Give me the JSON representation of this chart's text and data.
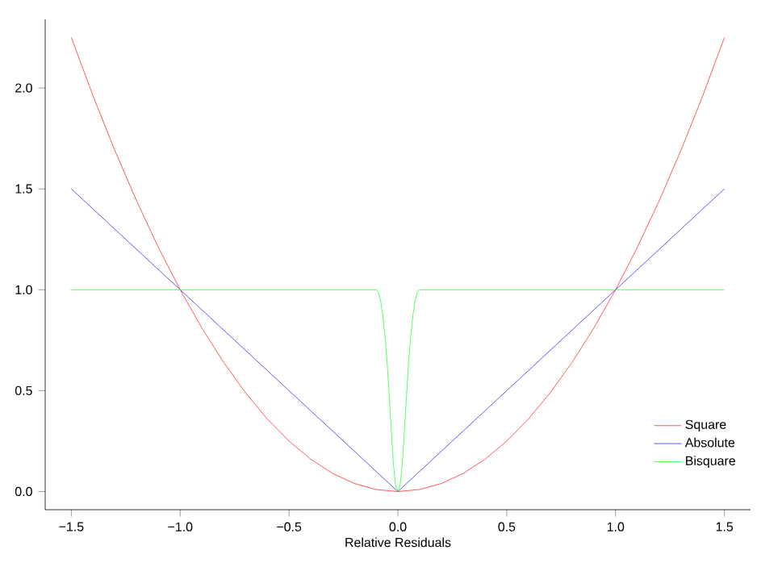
{
  "chart_data": {
    "type": "line",
    "xlabel": "Relative Residuals",
    "xlim": [
      -1.62,
      1.62
    ],
    "ylim": [
      -0.09,
      2.34
    ],
    "xticks": [
      {
        "value": -1.5,
        "label": "−1.5"
      },
      {
        "value": -1.0,
        "label": "−1.0"
      },
      {
        "value": -0.5,
        "label": "−0.5"
      },
      {
        "value": 0.0,
        "label": "0.0"
      },
      {
        "value": 0.5,
        "label": "0.5"
      },
      {
        "value": 1.0,
        "label": "1.0"
      },
      {
        "value": 1.5,
        "label": "1.5"
      }
    ],
    "yticks": [
      {
        "value": 0.0,
        "label": "0.0"
      },
      {
        "value": 0.5,
        "label": "0.5"
      },
      {
        "value": 1.0,
        "label": "1.0"
      },
      {
        "value": 1.5,
        "label": "1.5"
      },
      {
        "value": 2.0,
        "label": "2.0"
      }
    ],
    "legend": "bottom right",
    "grid": false,
    "marker": "none",
    "line_style": "solid",
    "series": [
      {
        "name": "Square",
        "color": "#ff3030",
        "x": [
          -1.5,
          -1.4,
          -1.3,
          -1.2,
          -1.1,
          -1.0,
          -0.9,
          -0.8,
          -0.7,
          -0.6,
          -0.5,
          -0.4,
          -0.3,
          -0.2,
          -0.1,
          0.0,
          0.1,
          0.2,
          0.3,
          0.4,
          0.5,
          0.6,
          0.7,
          0.8,
          0.9,
          1.0,
          1.1,
          1.2,
          1.3,
          1.4,
          1.5
        ],
        "values": [
          2.25,
          1.96,
          1.69,
          1.44,
          1.21,
          1.0,
          0.81,
          0.64,
          0.49,
          0.36,
          0.25,
          0.16,
          0.09,
          0.04,
          0.01,
          0.0,
          0.01,
          0.04,
          0.09,
          0.16,
          0.25,
          0.36,
          0.49,
          0.64,
          0.81,
          1.0,
          1.21,
          1.44,
          1.69,
          1.96,
          2.25
        ]
      },
      {
        "name": "Absolute",
        "color": "#3030ff",
        "x": [
          -1.5,
          0.0,
          1.5
        ],
        "values": [
          1.5,
          0.0,
          1.5
        ]
      },
      {
        "name": "Bisquare",
        "color": "#30ff30",
        "x": [
          -1.5,
          -0.1,
          -0.09,
          -0.08,
          -0.07,
          -0.06,
          -0.05,
          -0.04,
          -0.03,
          -0.02,
          -0.01,
          0.0,
          0.01,
          0.02,
          0.03,
          0.04,
          0.05,
          0.06,
          0.07,
          0.08,
          0.09,
          0.1,
          1.5
        ],
        "values": [
          1.0,
          1.0,
          0.99,
          0.95,
          0.88,
          0.78,
          0.65,
          0.48,
          0.3,
          0.13,
          0.03,
          0.0,
          0.03,
          0.13,
          0.3,
          0.48,
          0.65,
          0.78,
          0.88,
          0.95,
          0.99,
          1.0,
          1.0
        ]
      }
    ]
  }
}
